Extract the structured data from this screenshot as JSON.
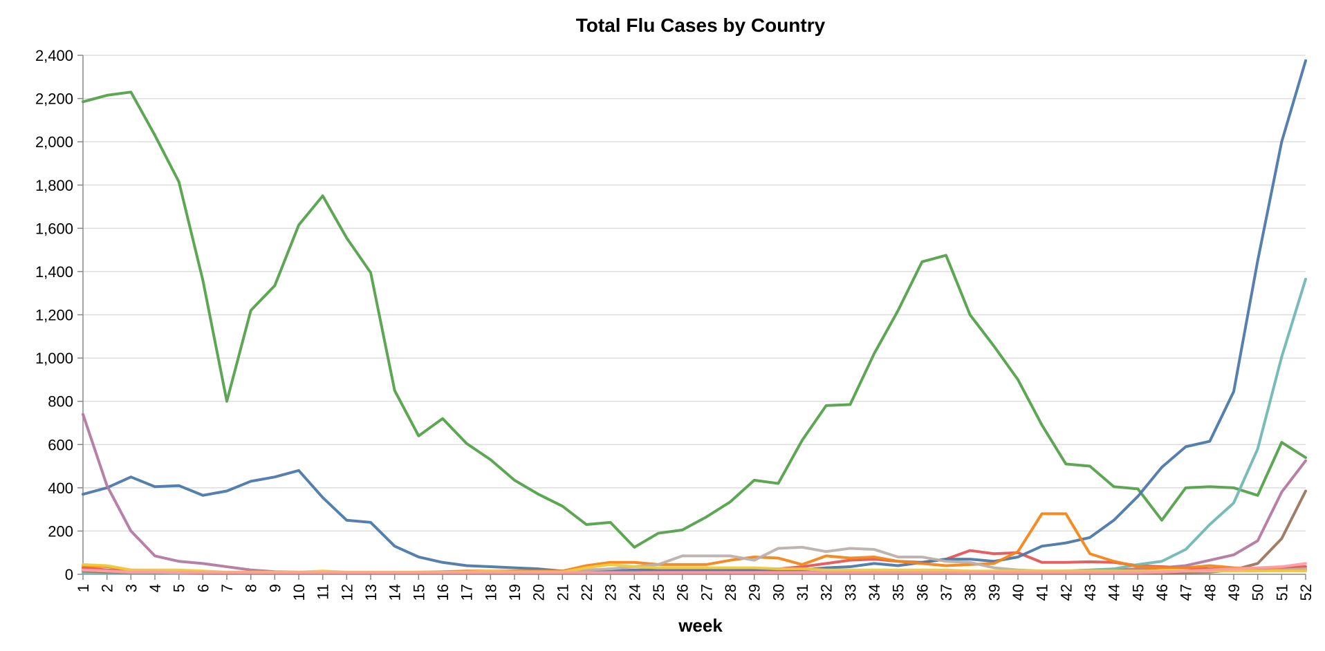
{
  "chart_data": {
    "type": "line",
    "title": "Total Flu Cases by Country",
    "xlabel": "week",
    "ylabel": "",
    "ylim": [
      0,
      2400
    ],
    "y_ticks": [
      0,
      200,
      400,
      600,
      800,
      1000,
      1200,
      1400,
      1600,
      1800,
      2000,
      2200,
      2400
    ],
    "y_tick_labels": [
      "0",
      "200",
      "400",
      "600",
      "800",
      "1,000",
      "1,200",
      "1,400",
      "1,600",
      "1,800",
      "2,000",
      "2,200",
      "2,400"
    ],
    "x": [
      1,
      2,
      3,
      4,
      5,
      6,
      7,
      8,
      9,
      10,
      11,
      12,
      13,
      14,
      15,
      16,
      17,
      18,
      19,
      20,
      21,
      22,
      23,
      24,
      25,
      26,
      27,
      28,
      29,
      30,
      31,
      32,
      33,
      34,
      35,
      36,
      37,
      38,
      39,
      40,
      41,
      42,
      43,
      44,
      45,
      46,
      47,
      48,
      49,
      50,
      51,
      52
    ],
    "x_tick_labels": [
      "1",
      "2",
      "3",
      "4",
      "5",
      "6",
      "7",
      "8",
      "9",
      "10",
      "11",
      "12",
      "13",
      "14",
      "15",
      "16",
      "17",
      "18",
      "19",
      "20",
      "21",
      "22",
      "23",
      "24",
      "25",
      "26",
      "27",
      "28",
      "29",
      "30",
      "31",
      "32",
      "33",
      "34",
      "35",
      "36",
      "37",
      "38",
      "39",
      "40",
      "41",
      "42",
      "43",
      "44",
      "45",
      "46",
      "47",
      "48",
      "49",
      "50",
      "51",
      "52"
    ],
    "grid": true,
    "legend": "none",
    "series": [
      {
        "color": "#e45756",
        "values": [
          30,
          20,
          15,
          12,
          10,
          8,
          7,
          6,
          6,
          5,
          5,
          5,
          5,
          5,
          5,
          5,
          5,
          5,
          5,
          5,
          5,
          5,
          8,
          10,
          12,
          15,
          15,
          15,
          20,
          25,
          35,
          50,
          65,
          70,
          60,
          55,
          70,
          110,
          95,
          100,
          55,
          55,
          58,
          55,
          40,
          35,
          30,
          25,
          25,
          25,
          30,
          35
        ]
      },
      {
        "color": "#54a24b",
        "values": [
          2185,
          2215,
          2230,
          2030,
          1815,
          1360,
          800,
          1220,
          1335,
          1615,
          1750,
          1555,
          1395,
          850,
          640,
          720,
          605,
          530,
          435,
          370,
          315,
          230,
          240,
          125,
          190,
          205,
          265,
          335,
          435,
          420,
          620,
          780,
          785,
          1020,
          1220,
          1445,
          1475,
          1200,
          1055,
          900,
          690,
          510,
          500,
          405,
          395,
          250,
          400,
          405,
          400,
          365,
          610,
          540
        ]
      },
      {
        "color": "#4c78a8",
        "values": [
          370,
          400,
          450,
          405,
          410,
          365,
          385,
          430,
          450,
          480,
          355,
          250,
          240,
          130,
          80,
          55,
          40,
          35,
          30,
          25,
          15,
          15,
          15,
          20,
          20,
          20,
          20,
          20,
          20,
          20,
          20,
          30,
          35,
          50,
          40,
          55,
          70,
          70,
          60,
          80,
          130,
          145,
          170,
          250,
          360,
          495,
          590,
          615,
          845,
          1450,
          2000,
          2375
        ]
      },
      {
        "color": "#b279a2",
        "values": [
          740,
          410,
          200,
          85,
          60,
          50,
          35,
          20,
          12,
          10,
          8,
          8,
          8,
          8,
          8,
          8,
          8,
          8,
          8,
          8,
          8,
          8,
          8,
          8,
          10,
          10,
          10,
          10,
          10,
          10,
          10,
          10,
          10,
          10,
          10,
          10,
          10,
          10,
          10,
          10,
          10,
          10,
          15,
          20,
          25,
          30,
          40,
          65,
          90,
          155,
          380,
          525
        ]
      },
      {
        "color": "#72b7b2",
        "values": [
          5,
          5,
          5,
          5,
          5,
          5,
          5,
          5,
          5,
          5,
          5,
          5,
          5,
          5,
          5,
          5,
          5,
          5,
          5,
          5,
          5,
          5,
          5,
          5,
          5,
          5,
          5,
          5,
          5,
          5,
          5,
          5,
          5,
          5,
          5,
          5,
          5,
          5,
          5,
          5,
          10,
          15,
          20,
          25,
          45,
          60,
          115,
          230,
          330,
          580,
          1005,
          1365
        ]
      },
      {
        "color": "#9d755d",
        "values": [
          15,
          10,
          8,
          8,
          8,
          5,
          5,
          5,
          5,
          5,
          5,
          5,
          5,
          5,
          5,
          5,
          5,
          5,
          5,
          5,
          5,
          5,
          5,
          5,
          5,
          5,
          5,
          5,
          5,
          5,
          5,
          5,
          5,
          5,
          5,
          5,
          5,
          5,
          5,
          5,
          5,
          5,
          5,
          5,
          5,
          5,
          8,
          10,
          20,
          50,
          165,
          385
        ]
      },
      {
        "color": "#f58518",
        "values": [
          40,
          35,
          20,
          15,
          12,
          10,
          8,
          8,
          8,
          8,
          8,
          8,
          8,
          8,
          10,
          12,
          15,
          15,
          15,
          15,
          15,
          40,
          55,
          55,
          45,
          45,
          45,
          65,
          80,
          75,
          45,
          85,
          75,
          80,
          60,
          50,
          40,
          45,
          50,
          105,
          280,
          280,
          95,
          60,
          35,
          30,
          30,
          40,
          30,
          25,
          20,
          20
        ]
      },
      {
        "color": "#bab0ac",
        "values": [
          20,
          15,
          10,
          10,
          8,
          8,
          8,
          8,
          8,
          8,
          8,
          8,
          8,
          8,
          8,
          8,
          10,
          10,
          10,
          12,
          12,
          20,
          25,
          35,
          45,
          85,
          85,
          85,
          65,
          120,
          125,
          105,
          120,
          115,
          80,
          80,
          60,
          55,
          30,
          20,
          15,
          15,
          15,
          15,
          15,
          15,
          15,
          15,
          15,
          15,
          20,
          25
        ]
      },
      {
        "color": "#eeca3b",
        "values": [
          45,
          40,
          20,
          20,
          20,
          15,
          10,
          10,
          10,
          10,
          15,
          10,
          10,
          10,
          10,
          10,
          10,
          15,
          10,
          10,
          10,
          30,
          45,
          35,
          30,
          30,
          30,
          30,
          30,
          25,
          25,
          20,
          20,
          20,
          20,
          20,
          20,
          15,
          15,
          15,
          15,
          15,
          15,
          15,
          15,
          15,
          15,
          15,
          15,
          15,
          15,
          15
        ]
      },
      {
        "color": "#ff9da6",
        "values": [
          20,
          15,
          10,
          10,
          8,
          8,
          8,
          8,
          8,
          8,
          8,
          8,
          8,
          8,
          8,
          8,
          8,
          8,
          8,
          8,
          8,
          8,
          8,
          8,
          8,
          8,
          8,
          8,
          8,
          8,
          8,
          8,
          8,
          8,
          8,
          8,
          8,
          8,
          8,
          8,
          8,
          8,
          8,
          8,
          8,
          10,
          15,
          20,
          25,
          30,
          35,
          50
        ]
      }
    ]
  }
}
